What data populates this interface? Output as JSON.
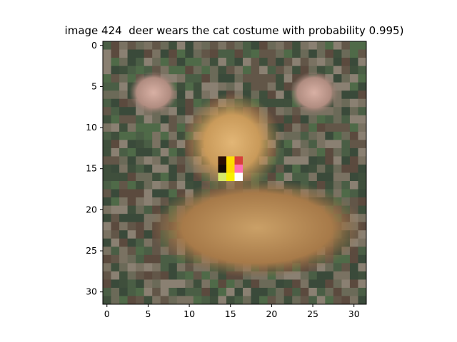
{
  "figure": {
    "title": "image 424  deer wears the cat costume with probability 0.995)"
  },
  "image": {
    "subject": "pixelated deer face",
    "grid_size": [
      32,
      32
    ],
    "patch": {
      "rows": [
        14,
        16
      ],
      "cols": [
        14,
        16
      ],
      "colors": [
        [
          "#2a0f05",
          "#ffdd00",
          "#d8403a"
        ],
        [
          "#120a05",
          "#ffd800",
          "#ff6fb0"
        ],
        [
          "#d8e86a",
          "#f8f000",
          "#ffffff"
        ]
      ]
    }
  },
  "axes": {
    "x_ticks": [
      "0",
      "5",
      "10",
      "15",
      "20",
      "25",
      "30"
    ],
    "y_ticks": [
      "0",
      "5",
      "10",
      "15",
      "20",
      "25",
      "30"
    ],
    "x_range": [
      -0.5,
      31.5
    ],
    "y_range": [
      -0.5,
      31.5
    ]
  }
}
